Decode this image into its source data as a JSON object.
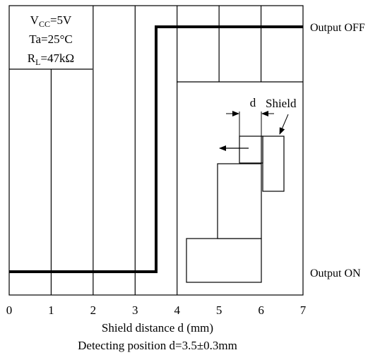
{
  "chart_data": {
    "type": "line",
    "title": "",
    "x_ticks": [
      "0",
      "1",
      "2",
      "3",
      "4",
      "5",
      "6",
      "7"
    ],
    "xlim": [
      0,
      7
    ],
    "grid": true,
    "xlabel": "Shield distance d (mm)",
    "caption": "Detecting position d=3.5±0.3mm",
    "y_levels": {
      "off": "Output OFF",
      "on": "Output ON"
    },
    "series": [
      {
        "x": [
          0,
          3.5,
          3.5,
          7
        ],
        "y": [
          "Output ON",
          "Output ON",
          "Output OFF",
          "Output OFF"
        ]
      }
    ],
    "conditions": {
      "vcc": {
        "base": "V",
        "sub": "CC",
        "rest": "=5V"
      },
      "ta": "Ta=25°C",
      "rl": {
        "base": "R",
        "sub": "L",
        "rest": "=47kΩ"
      }
    },
    "inset": {
      "d_label": "d",
      "shield_label": "Shield"
    }
  }
}
